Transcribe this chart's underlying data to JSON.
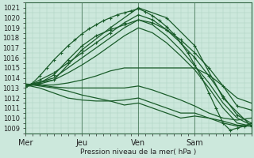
{
  "bg_color": "#cce8dc",
  "plot_bg_color": "#cce8dc",
  "grid_color": "#aacfbe",
  "line_color": "#1a5c2a",
  "xlabel": "Pression niveau de la mer( hPa )",
  "xtick_labels": [
    "Mer",
    "Jeu",
    "Ven",
    "Sam"
  ],
  "xtick_positions": [
    0,
    48,
    96,
    144
  ],
  "xlim": [
    0,
    192
  ],
  "ylim": [
    1008.5,
    1021.5
  ],
  "yticks": [
    1009,
    1010,
    1011,
    1012,
    1013,
    1014,
    1015,
    1016,
    1017,
    1018,
    1019,
    1020,
    1021
  ],
  "vline_positions": [
    0,
    48,
    96,
    144
  ],
  "vline_color": "#336644",
  "ensemble_lines": [
    {
      "points": [
        [
          0,
          1013.1
        ],
        [
          6,
          1013.5
        ],
        [
          12,
          1014.2
        ],
        [
          18,
          1015.0
        ],
        [
          24,
          1015.8
        ],
        [
          30,
          1016.5
        ],
        [
          36,
          1017.2
        ],
        [
          42,
          1017.8
        ],
        [
          48,
          1018.4
        ],
        [
          54,
          1018.9
        ],
        [
          60,
          1019.3
        ],
        [
          66,
          1019.7
        ],
        [
          72,
          1020.0
        ],
        [
          78,
          1020.3
        ],
        [
          84,
          1020.5
        ],
        [
          90,
          1020.7
        ],
        [
          96,
          1020.9
        ],
        [
          102,
          1020.6
        ],
        [
          108,
          1020.2
        ],
        [
          114,
          1019.7
        ],
        [
          120,
          1019.1
        ],
        [
          126,
          1018.4
        ],
        [
          132,
          1017.5
        ],
        [
          138,
          1016.5
        ],
        [
          144,
          1015.3
        ],
        [
          150,
          1014.0
        ],
        [
          156,
          1012.5
        ],
        [
          162,
          1011.0
        ],
        [
          168,
          1009.5
        ],
        [
          174,
          1008.8
        ],
        [
          180,
          1009.0
        ],
        [
          186,
          1009.2
        ],
        [
          192,
          1009.5
        ]
      ],
      "marker": true
    },
    {
      "points": [
        [
          0,
          1013.1
        ],
        [
          12,
          1013.8
        ],
        [
          24,
          1014.5
        ],
        [
          36,
          1015.5
        ],
        [
          48,
          1016.5
        ],
        [
          60,
          1017.5
        ],
        [
          72,
          1018.5
        ],
        [
          84,
          1019.5
        ],
        [
          96,
          1020.3
        ],
        [
          108,
          1019.8
        ],
        [
          120,
          1018.8
        ],
        [
          132,
          1017.5
        ],
        [
          144,
          1016.0
        ],
        [
          156,
          1014.2
        ],
        [
          168,
          1012.2
        ],
        [
          180,
          1010.3
        ],
        [
          192,
          1009.5
        ]
      ],
      "marker": true
    },
    {
      "points": [
        [
          0,
          1013.2
        ],
        [
          12,
          1013.6
        ],
        [
          24,
          1014.0
        ],
        [
          36,
          1015.0
        ],
        [
          48,
          1016.0
        ],
        [
          60,
          1017.0
        ],
        [
          72,
          1018.0
        ],
        [
          84,
          1019.0
        ],
        [
          96,
          1019.8
        ],
        [
          108,
          1019.3
        ],
        [
          120,
          1018.2
        ],
        [
          132,
          1016.8
        ],
        [
          144,
          1015.2
        ],
        [
          156,
          1013.5
        ],
        [
          168,
          1011.5
        ],
        [
          180,
          1010.0
        ],
        [
          192,
          1009.3
        ]
      ],
      "marker": false
    },
    {
      "points": [
        [
          0,
          1013.2
        ],
        [
          12,
          1013.4
        ],
        [
          24,
          1013.8
        ],
        [
          36,
          1014.5
        ],
        [
          48,
          1015.3
        ],
        [
          60,
          1016.2
        ],
        [
          72,
          1017.2
        ],
        [
          84,
          1018.2
        ],
        [
          96,
          1019.0
        ],
        [
          108,
          1018.5
        ],
        [
          120,
          1017.5
        ],
        [
          132,
          1016.2
        ],
        [
          144,
          1014.8
        ],
        [
          156,
          1013.0
        ],
        [
          168,
          1011.0
        ],
        [
          180,
          1009.5
        ],
        [
          192,
          1009.2
        ]
      ],
      "marker": false
    },
    {
      "points": [
        [
          0,
          1013.3
        ],
        [
          12,
          1013.3
        ],
        [
          24,
          1013.3
        ],
        [
          36,
          1013.5
        ],
        [
          48,
          1013.8
        ],
        [
          60,
          1014.2
        ],
        [
          72,
          1014.7
        ],
        [
          84,
          1015.0
        ],
        [
          96,
          1015.0
        ],
        [
          108,
          1015.0
        ],
        [
          120,
          1015.0
        ],
        [
          132,
          1015.0
        ],
        [
          144,
          1015.0
        ],
        [
          156,
          1014.3
        ],
        [
          168,
          1013.2
        ],
        [
          180,
          1012.0
        ],
        [
          192,
          1011.5
        ]
      ],
      "marker": false
    },
    {
      "points": [
        [
          0,
          1013.4
        ],
        [
          12,
          1013.3
        ],
        [
          24,
          1013.1
        ],
        [
          36,
          1013.0
        ],
        [
          48,
          1013.0
        ],
        [
          60,
          1013.0
        ],
        [
          72,
          1013.0
        ],
        [
          84,
          1013.0
        ],
        [
          96,
          1013.2
        ],
        [
          108,
          1012.8
        ],
        [
          120,
          1012.3
        ],
        [
          132,
          1011.8
        ],
        [
          144,
          1011.2
        ],
        [
          156,
          1010.5
        ],
        [
          168,
          1010.0
        ],
        [
          180,
          1009.8
        ],
        [
          192,
          1010.0
        ]
      ],
      "marker": false
    },
    {
      "points": [
        [
          0,
          1013.4
        ],
        [
          12,
          1013.2
        ],
        [
          24,
          1013.0
        ],
        [
          36,
          1012.7
        ],
        [
          48,
          1012.3
        ],
        [
          60,
          1012.0
        ],
        [
          72,
          1011.7
        ],
        [
          84,
          1011.3
        ],
        [
          96,
          1011.5
        ],
        [
          108,
          1011.0
        ],
        [
          120,
          1010.5
        ],
        [
          132,
          1010.0
        ],
        [
          144,
          1010.2
        ],
        [
          156,
          1010.0
        ],
        [
          168,
          1009.7
        ],
        [
          180,
          1009.3
        ],
        [
          192,
          1009.2
        ]
      ],
      "marker": false
    },
    {
      "points": [
        [
          0,
          1013.3
        ],
        [
          12,
          1013.0
        ],
        [
          24,
          1012.5
        ],
        [
          36,
          1012.0
        ],
        [
          48,
          1011.8
        ],
        [
          60,
          1011.7
        ],
        [
          72,
          1011.7
        ],
        [
          84,
          1011.8
        ],
        [
          96,
          1012.0
        ],
        [
          108,
          1011.5
        ],
        [
          120,
          1011.0
        ],
        [
          132,
          1010.5
        ],
        [
          144,
          1010.5
        ],
        [
          156,
          1010.0
        ],
        [
          168,
          1009.5
        ],
        [
          180,
          1009.2
        ],
        [
          192,
          1009.2
        ]
      ],
      "marker": false
    },
    {
      "points": [
        [
          0,
          1013.1
        ],
        [
          12,
          1013.5
        ],
        [
          24,
          1014.3
        ],
        [
          36,
          1015.8
        ],
        [
          48,
          1017.2
        ],
        [
          60,
          1018.2
        ],
        [
          72,
          1018.8
        ],
        [
          84,
          1019.3
        ],
        [
          96,
          1019.8
        ],
        [
          108,
          1019.5
        ],
        [
          120,
          1018.8
        ],
        [
          132,
          1017.8
        ],
        [
          144,
          1016.5
        ],
        [
          156,
          1015.0
        ],
        [
          168,
          1013.2
        ],
        [
          180,
          1011.2
        ],
        [
          192,
          1010.8
        ]
      ],
      "marker": true
    },
    {
      "points": [
        [
          0,
          1013.3
        ],
        [
          24,
          1013.8
        ],
        [
          48,
          1016.8
        ],
        [
          72,
          1019.0
        ],
        [
          96,
          1021.0
        ],
        [
          120,
          1020.0
        ],
        [
          144,
          1017.2
        ],
        [
          168,
          1012.0
        ],
        [
          192,
          1009.2
        ]
      ],
      "marker": true
    }
  ]
}
